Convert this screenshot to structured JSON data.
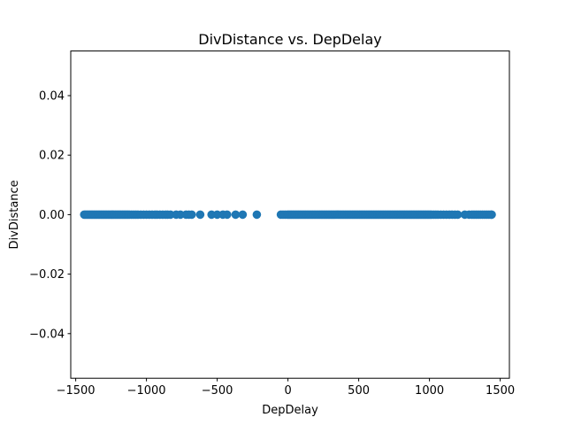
{
  "chart_data": {
    "type": "scatter",
    "title": "DivDistance vs. DepDelay",
    "xlabel": "DepDelay",
    "ylabel": "DivDistance",
    "xlim": [
      -1535,
      1565
    ],
    "ylim": [
      -0.055,
      0.055
    ],
    "xticks": [
      {
        "value": -1500,
        "label": "−1500"
      },
      {
        "value": -1000,
        "label": "−1000"
      },
      {
        "value": -500,
        "label": "−500"
      },
      {
        "value": 0,
        "label": "0"
      },
      {
        "value": 500,
        "label": "500"
      },
      {
        "value": 1000,
        "label": "1000"
      },
      {
        "value": 1500,
        "label": "1500"
      }
    ],
    "yticks": [
      {
        "value": -0.04,
        "label": "−0.04"
      },
      {
        "value": -0.02,
        "label": "−0.02"
      },
      {
        "value": 0.0,
        "label": "0.00"
      },
      {
        "value": 0.02,
        "label": "0.02"
      },
      {
        "value": 0.04,
        "label": "0.04"
      }
    ],
    "grid": false,
    "marker_color": "#1f77b4",
    "series": [
      {
        "x": [
          -1440,
          -1430,
          -1420,
          -1410,
          -1400,
          -1390,
          -1380,
          -1370,
          -1360,
          -1350,
          -1340,
          -1330,
          -1320,
          -1310,
          -1300,
          -1290,
          -1280,
          -1270,
          -1260,
          -1250,
          -1240,
          -1230,
          -1220,
          -1210,
          -1200,
          -1190,
          -1180,
          -1170,
          -1160,
          -1150,
          -1140,
          -1130,
          -1120,
          -1105,
          -1090,
          -1075,
          -1060,
          -1040,
          -1020,
          -1000,
          -980,
          -960,
          -940,
          -925,
          -905,
          -885,
          -865,
          -850,
          -830,
          -790,
          -760,
          -720,
          -700,
          -680,
          -620,
          -540,
          -500,
          -460,
          -430,
          -370,
          -320,
          -220,
          -50,
          -35,
          -20,
          -5,
          5,
          15,
          25,
          35,
          45,
          55,
          65,
          75,
          85,
          95,
          105,
          115,
          125,
          135,
          145,
          155,
          165,
          175,
          185,
          195,
          205,
          215,
          225,
          235,
          245,
          255,
          265,
          275,
          285,
          295,
          305,
          315,
          325,
          335,
          345,
          355,
          365,
          375,
          385,
          395,
          405,
          415,
          425,
          435,
          445,
          455,
          465,
          475,
          485,
          495,
          505,
          515,
          525,
          535,
          545,
          555,
          565,
          575,
          585,
          595,
          605,
          615,
          625,
          635,
          645,
          655,
          665,
          675,
          685,
          695,
          705,
          715,
          725,
          735,
          745,
          755,
          765,
          775,
          785,
          795,
          805,
          815,
          825,
          835,
          845,
          855,
          865,
          875,
          885,
          895,
          905,
          915,
          925,
          935,
          945,
          955,
          965,
          975,
          985,
          995,
          1005,
          1015,
          1030,
          1045,
          1060,
          1080,
          1100,
          1120,
          1140,
          1160,
          1180,
          1200,
          1250,
          1280,
          1300,
          1315,
          1330,
          1345,
          1360,
          1375,
          1390,
          1405,
          1420,
          1435,
          1440
        ],
        "y": 0
      }
    ]
  }
}
